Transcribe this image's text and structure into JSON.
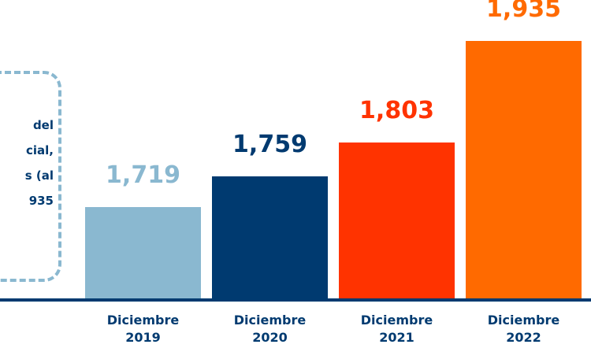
{
  "chart_data": {
    "type": "bar",
    "annotation": [
      "del",
      "cial,",
      "s (al",
      "935"
    ],
    "categories": [
      "Diciembre 2019",
      "Diciembre 2020",
      "Diciembre 2021",
      "Diciembre 2022"
    ],
    "values": [
      1719,
      1759,
      1803,
      1935
    ],
    "value_labels": [
      "1,719",
      "1,759",
      "1,803",
      "1,935"
    ],
    "colors": [
      "#8ab8d0",
      "#003a70",
      "#ff3300",
      "#ff6a00"
    ],
    "ylim": [
      1600,
      1950
    ]
  }
}
